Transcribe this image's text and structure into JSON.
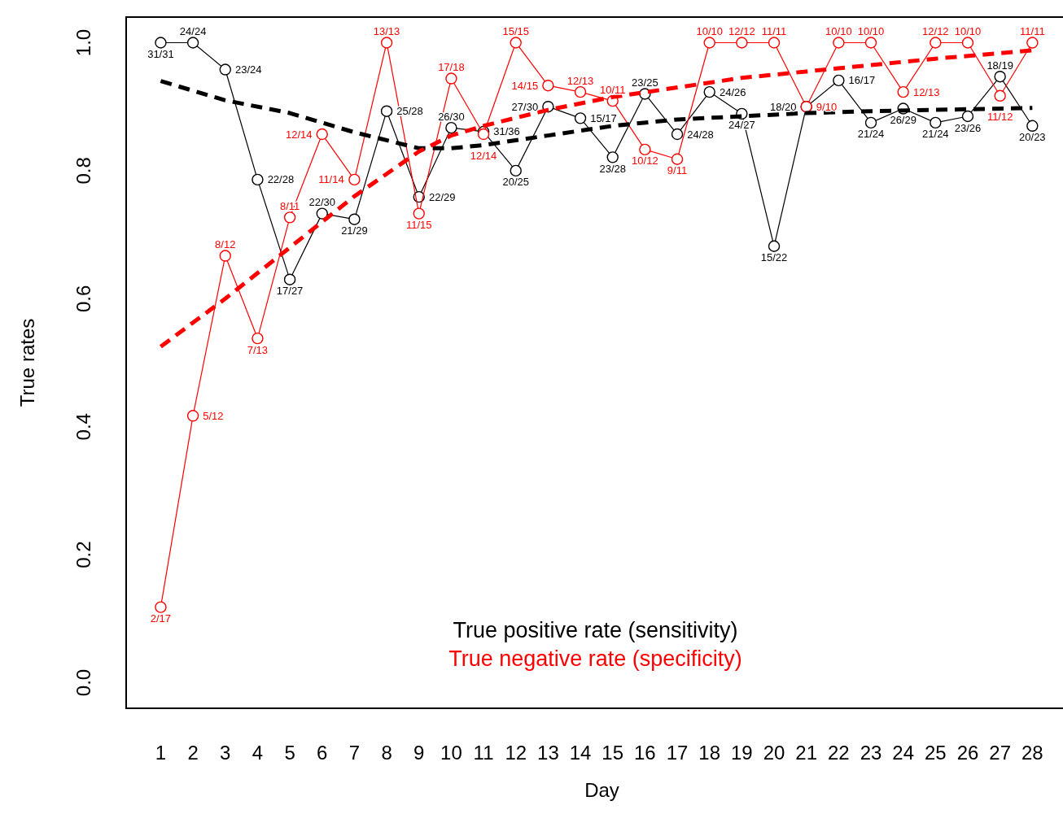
{
  "chart_data": {
    "type": "line",
    "xlabel": "Day",
    "ylabel": "True rates",
    "x": [
      1,
      2,
      3,
      4,
      5,
      6,
      7,
      8,
      9,
      10,
      11,
      12,
      13,
      14,
      15,
      16,
      17,
      18,
      19,
      20,
      21,
      22,
      23,
      24,
      25,
      26,
      27,
      28
    ],
    "xlim": [
      -0.07,
      29.0
    ],
    "xticks": [
      1,
      2,
      3,
      4,
      5,
      6,
      7,
      8,
      9,
      10,
      11,
      12,
      13,
      14,
      15,
      16,
      17,
      18,
      19,
      20,
      21,
      22,
      23,
      24,
      25,
      26,
      27,
      28
    ],
    "ylim": [
      -0.04,
      1.04
    ],
    "yticks": [
      {
        "value": 0,
        "label": "0.0"
      },
      {
        "value": 0.2,
        "label": "0.2"
      },
      {
        "value": 0.4,
        "label": "0.4"
      },
      {
        "value": 0.6,
        "label": "0.6"
      },
      {
        "value": 0.8,
        "label": "0.8"
      },
      {
        "value": 1,
        "label": "1.0"
      }
    ],
    "grid": false,
    "legend": "bottom",
    "series": [
      {
        "name": "True positive rate (sensitivity)",
        "color": "#000000",
        "marker": "circle",
        "line_style": "solid",
        "values": [
          1,
          1,
          0.958,
          0.786,
          0.63,
          0.733,
          0.724,
          0.893,
          0.759,
          0.867,
          0.861,
          0.8,
          0.9,
          0.882,
          0.821,
          0.92,
          0.857,
          0.923,
          0.889,
          0.682,
          0.9,
          0.941,
          0.875,
          0.897,
          0.875,
          0.885,
          0.947,
          0.87
        ],
        "value_labels": [
          "31/31",
          "24/24",
          "23/24",
          "22/28",
          "17/27",
          "22/30",
          "21/29",
          "25/28",
          "22/29",
          "26/30",
          "31/36",
          "20/25",
          "27/30",
          "15/17",
          "23/28",
          "23/25",
          "24/28",
          "24/26",
          "24/27",
          "15/22",
          "18/20",
          "16/17",
          "21/24",
          "26/29",
          "21/24",
          "23/26",
          "18/19",
          "20/23"
        ]
      },
      {
        "name": "True negative rate (specificity)",
        "color": "#ff0000",
        "marker": "circle",
        "line_style": "solid",
        "values": [
          0.118,
          0.417,
          0.667,
          0.538,
          0.727,
          0.857,
          0.786,
          1,
          0.733,
          0.944,
          0.857,
          1,
          0.933,
          0.923,
          0.909,
          0.833,
          0.818,
          1,
          1,
          1,
          0.9,
          1,
          1,
          0.923,
          1,
          1,
          0.917,
          1
        ],
        "value_labels": [
          "2/17",
          "5/12",
          "8/12",
          "7/13",
          "8/11",
          "12/14",
          "11/14",
          "13/13",
          "11/15",
          "17/18",
          "12/14",
          "15/15",
          "14/15",
          "12/13",
          "10/11",
          "10/12",
          "9/11",
          "10/10",
          "12/12",
          "11/11",
          "9/10",
          "10/10",
          "10/10",
          "12/13",
          "12/12",
          "10/10",
          "11/12",
          "11/11"
        ]
      },
      {
        "color": "#000000",
        "marker": "none",
        "line_style": "dashed",
        "x": [
          1,
          3,
          5,
          7,
          9,
          10,
          11,
          13,
          15,
          17,
          19,
          21,
          23,
          25,
          28
        ],
        "values": [
          0.94,
          0.91,
          0.89,
          0.86,
          0.835,
          0.835,
          0.84,
          0.855,
          0.87,
          0.88,
          0.885,
          0.89,
          0.893,
          0.895,
          0.898
        ]
      },
      {
        "color": "#ff0000",
        "marker": "none",
        "line_style": "dashed",
        "x": [
          1,
          3,
          5,
          7,
          9,
          10,
          11,
          13,
          15,
          17,
          19,
          21,
          23,
          25,
          28
        ],
        "values": [
          0.525,
          0.6,
          0.68,
          0.76,
          0.83,
          0.855,
          0.87,
          0.895,
          0.915,
          0.93,
          0.945,
          0.955,
          0.965,
          0.975,
          0.988
        ]
      }
    ]
  }
}
